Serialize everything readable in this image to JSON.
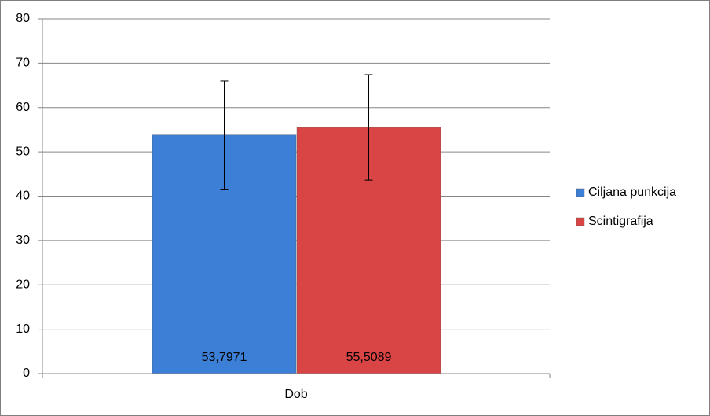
{
  "chart_data": {
    "type": "bar",
    "categories": [
      "Dob"
    ],
    "series": [
      {
        "name": "Ciljana punkcija",
        "color": "#3c7fd6",
        "values": [
          53.7971
        ],
        "value_labels": [
          "53,7971"
        ],
        "errors": [
          12.2
        ]
      },
      {
        "name": "Scintigrafija",
        "color": "#d94444",
        "values": [
          55.5089
        ],
        "value_labels": [
          "55,5089"
        ],
        "errors": [
          11.9
        ]
      }
    ],
    "ylim": [
      0,
      80
    ],
    "yticks": [
      0,
      10,
      20,
      30,
      40,
      50,
      60,
      70,
      80
    ],
    "grid": true,
    "legend": "right"
  }
}
